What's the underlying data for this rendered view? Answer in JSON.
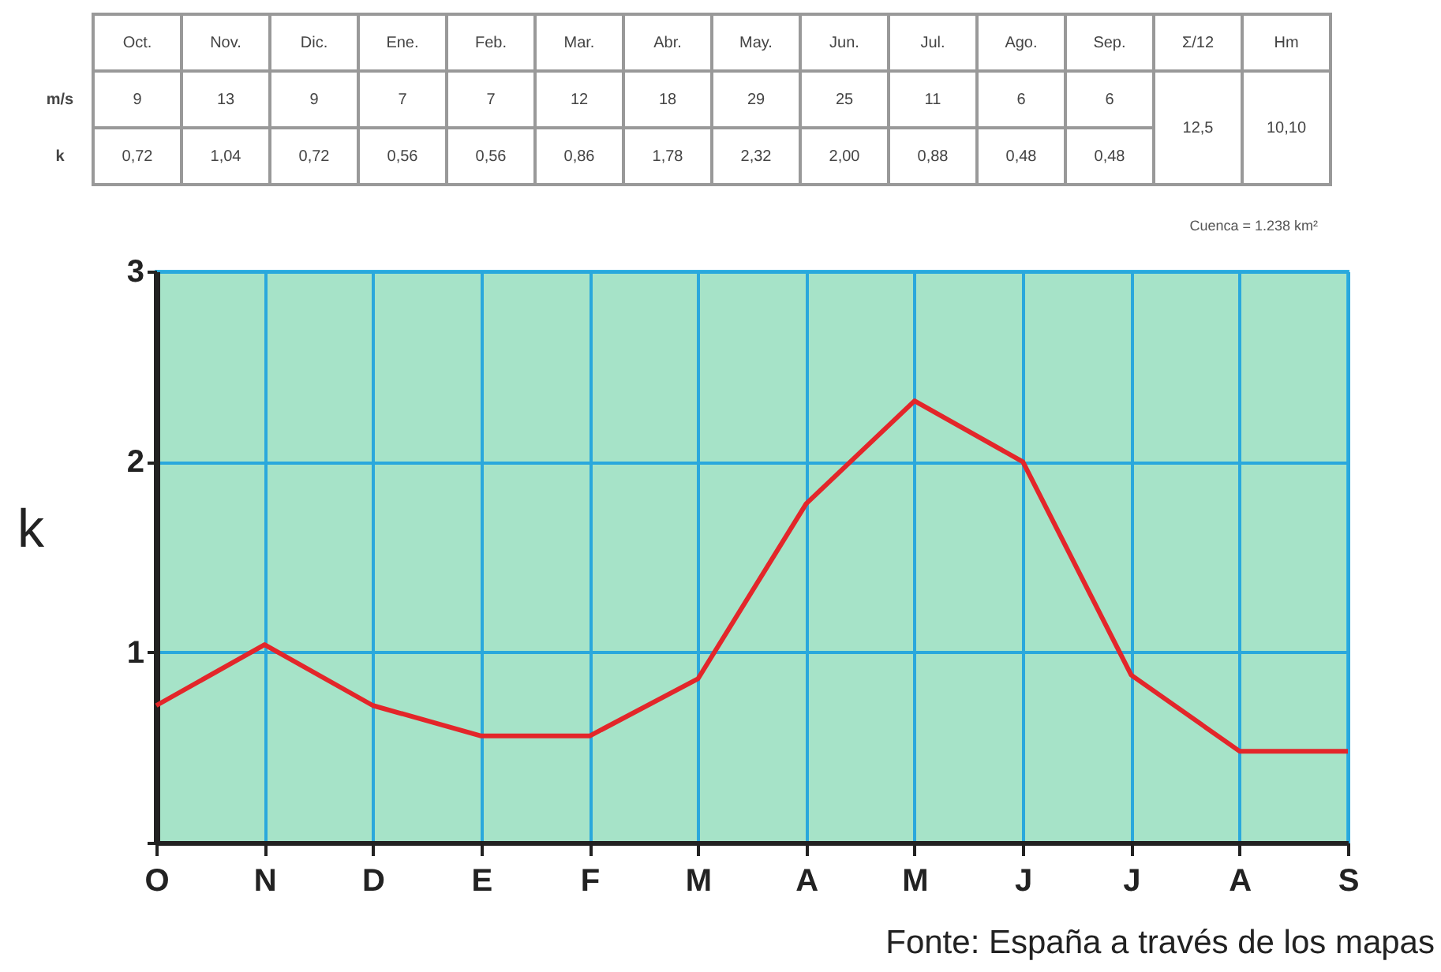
{
  "chart_data": {
    "type": "line",
    "ylabel": "k",
    "categories": [
      "O",
      "N",
      "D",
      "E",
      "F",
      "M",
      "A",
      "M",
      "J",
      "J",
      "A",
      "S"
    ],
    "series": [
      {
        "color": "#e3262a",
        "values": [
          0.72,
          1.04,
          0.72,
          0.56,
          0.56,
          0.86,
          1.78,
          2.32,
          2.0,
          0.88,
          0.48,
          0.48
        ]
      }
    ],
    "ylim": [
      0,
      3
    ],
    "yticks": [
      {
        "value": 0,
        "label": null
      },
      1,
      2,
      3
    ],
    "grid": true,
    "annotations": [
      "Oct.",
      "Nov.",
      "Dic.",
      "Ene.",
      "Feb.",
      "Mar.",
      "Abr.",
      "May.",
      "Jun.",
      "Jul.",
      "Ago.",
      "Sep.",
      "Σ/12",
      "Hm",
      "m/s",
      "9",
      "13",
      "9",
      "7",
      "7",
      "12",
      "18",
      "29",
      "25",
      "11",
      "6",
      "6",
      "k",
      "0,72",
      "1,04",
      "0,72",
      "0,56",
      "0,56",
      "0,86",
      "1,78",
      "2,32",
      "2,00",
      "0,88",
      "0,48",
      "0,48",
      "12,5",
      "10,10",
      "Cuenca = 1.238 km²",
      "Fonte: España a través de los mapas"
    ]
  }
}
